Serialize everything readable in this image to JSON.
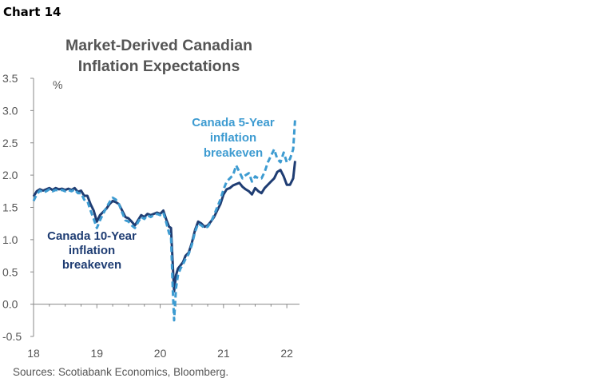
{
  "header": {
    "chart_label": "Chart 14"
  },
  "footer": {
    "source": "Sources: Scotiabank Economics, Bloomberg."
  },
  "colors": {
    "ten_year": "#1f3d73",
    "five_year": "#3d9bd1",
    "axis": "#888888",
    "text": "#555555"
  },
  "chart_data": {
    "type": "line",
    "title_lines": [
      "Market-Derived Canadian",
      "Inflation Expectations"
    ],
    "ylabel": "%",
    "ylim": [
      -0.5,
      3.5
    ],
    "yticks": [
      {
        "value": 3.5,
        "label": "3.5"
      },
      {
        "value": 3.0,
        "label": "3.0"
      },
      {
        "value": 2.5,
        "label": "2.5"
      },
      {
        "value": 2.0,
        "label": "2.0"
      },
      {
        "value": 1.5,
        "label": "1.5"
      },
      {
        "value": 1.0,
        "label": "1.0"
      },
      {
        "value": 0.5,
        "label": "0.5"
      },
      {
        "value": 0.0,
        "label": "0.0"
      },
      {
        "value": -0.5,
        "label": "-0.5"
      }
    ],
    "xlim": [
      2018.0,
      2022.2
    ],
    "xticks": [
      {
        "value": 2018,
        "label": "18"
      },
      {
        "value": 2019,
        "label": "19"
      },
      {
        "value": 2020,
        "label": "20"
      },
      {
        "value": 2021,
        "label": "21"
      },
      {
        "value": 2022,
        "label": "22"
      }
    ],
    "grid": false,
    "series": [
      {
        "name": "Canada 10-Year inflation breakeven",
        "label_lines": [
          "Canada 10-Year",
          "inflation",
          "breakeven"
        ],
        "style": "solid",
        "x": [
          2018.0,
          2018.05,
          2018.1,
          2018.15,
          2018.2,
          2018.25,
          2018.3,
          2018.35,
          2018.4,
          2018.45,
          2018.5,
          2018.55,
          2018.6,
          2018.65,
          2018.7,
          2018.75,
          2018.8,
          2018.85,
          2018.9,
          2018.95,
          2019.0,
          2019.05,
          2019.1,
          2019.15,
          2019.2,
          2019.25,
          2019.3,
          2019.35,
          2019.4,
          2019.45,
          2019.5,
          2019.55,
          2019.6,
          2019.65,
          2019.7,
          2019.75,
          2019.8,
          2019.85,
          2019.9,
          2019.95,
          2020.0,
          2020.05,
          2020.1,
          2020.14,
          2020.17,
          2020.2,
          2020.22,
          2020.25,
          2020.28,
          2020.32,
          2020.36,
          2020.4,
          2020.45,
          2020.5,
          2020.55,
          2020.6,
          2020.65,
          2020.7,
          2020.75,
          2020.8,
          2020.85,
          2020.9,
          2020.95,
          2021.0,
          2021.05,
          2021.1,
          2021.15,
          2021.2,
          2021.25,
          2021.3,
          2021.35,
          2021.4,
          2021.45,
          2021.5,
          2021.55,
          2021.6,
          2021.65,
          2021.7,
          2021.75,
          2021.8,
          2021.85,
          2021.9,
          2021.95,
          2022.0,
          2022.05,
          2022.1,
          2022.13
        ],
        "values": [
          1.67,
          1.75,
          1.78,
          1.76,
          1.78,
          1.8,
          1.77,
          1.8,
          1.78,
          1.79,
          1.77,
          1.79,
          1.77,
          1.8,
          1.74,
          1.76,
          1.68,
          1.68,
          1.55,
          1.45,
          1.28,
          1.38,
          1.43,
          1.48,
          1.55,
          1.6,
          1.58,
          1.55,
          1.45,
          1.35,
          1.33,
          1.28,
          1.22,
          1.3,
          1.38,
          1.35,
          1.4,
          1.38,
          1.4,
          1.42,
          1.4,
          1.45,
          1.3,
          1.2,
          1.18,
          0.6,
          0.2,
          0.45,
          0.55,
          0.6,
          0.65,
          0.75,
          0.8,
          0.95,
          1.15,
          1.28,
          1.25,
          1.2,
          1.22,
          1.28,
          1.35,
          1.45,
          1.55,
          1.7,
          1.78,
          1.8,
          1.84,
          1.86,
          1.88,
          1.82,
          1.78,
          1.75,
          1.7,
          1.8,
          1.75,
          1.72,
          1.8,
          1.85,
          1.9,
          1.95,
          2.05,
          2.08,
          1.98,
          1.85,
          1.85,
          1.95,
          2.22
        ]
      },
      {
        "name": "Canada 5-Year inflation breakeven",
        "label_lines": [
          "Canada 5-Year",
          "inflation",
          "breakeven"
        ],
        "style": "dashed",
        "x": [
          2018.0,
          2018.05,
          2018.1,
          2018.15,
          2018.2,
          2018.25,
          2018.3,
          2018.35,
          2018.4,
          2018.45,
          2018.5,
          2018.55,
          2018.6,
          2018.65,
          2018.7,
          2018.75,
          2018.8,
          2018.85,
          2018.9,
          2018.95,
          2019.0,
          2019.05,
          2019.1,
          2019.15,
          2019.2,
          2019.25,
          2019.3,
          2019.35,
          2019.4,
          2019.45,
          2019.5,
          2019.55,
          2019.6,
          2019.65,
          2019.7,
          2019.75,
          2019.8,
          2019.85,
          2019.9,
          2019.95,
          2020.0,
          2020.05,
          2020.1,
          2020.14,
          2020.17,
          2020.2,
          2020.22,
          2020.25,
          2020.28,
          2020.32,
          2020.36,
          2020.4,
          2020.45,
          2020.5,
          2020.55,
          2020.6,
          2020.65,
          2020.7,
          2020.75,
          2020.8,
          2020.85,
          2020.9,
          2020.95,
          2021.0,
          2021.05,
          2021.1,
          2021.15,
          2021.2,
          2021.25,
          2021.3,
          2021.35,
          2021.4,
          2021.45,
          2021.5,
          2021.55,
          2021.6,
          2021.65,
          2021.7,
          2021.75,
          2021.8,
          2021.85,
          2021.9,
          2021.95,
          2022.0,
          2022.05,
          2022.1,
          2022.13
        ],
        "values": [
          1.6,
          1.7,
          1.76,
          1.73,
          1.75,
          1.78,
          1.75,
          1.77,
          1.76,
          1.77,
          1.75,
          1.77,
          1.75,
          1.78,
          1.72,
          1.72,
          1.62,
          1.6,
          1.45,
          1.32,
          1.18,
          1.3,
          1.4,
          1.5,
          1.58,
          1.65,
          1.62,
          1.55,
          1.42,
          1.3,
          1.28,
          1.22,
          1.18,
          1.27,
          1.35,
          1.32,
          1.38,
          1.35,
          1.38,
          1.4,
          1.38,
          1.42,
          1.25,
          1.1,
          1.05,
          0.2,
          -0.25,
          0.25,
          0.45,
          0.55,
          0.62,
          0.7,
          0.78,
          0.92,
          1.12,
          1.25,
          1.22,
          1.18,
          1.2,
          1.27,
          1.38,
          1.5,
          1.62,
          1.78,
          1.9,
          1.95,
          2.0,
          2.15,
          2.05,
          1.95,
          2.0,
          2.03,
          1.9,
          1.98,
          1.95,
          1.95,
          2.05,
          2.2,
          2.3,
          2.4,
          2.25,
          2.2,
          2.35,
          2.2,
          2.25,
          2.4,
          2.87
        ]
      }
    ]
  }
}
